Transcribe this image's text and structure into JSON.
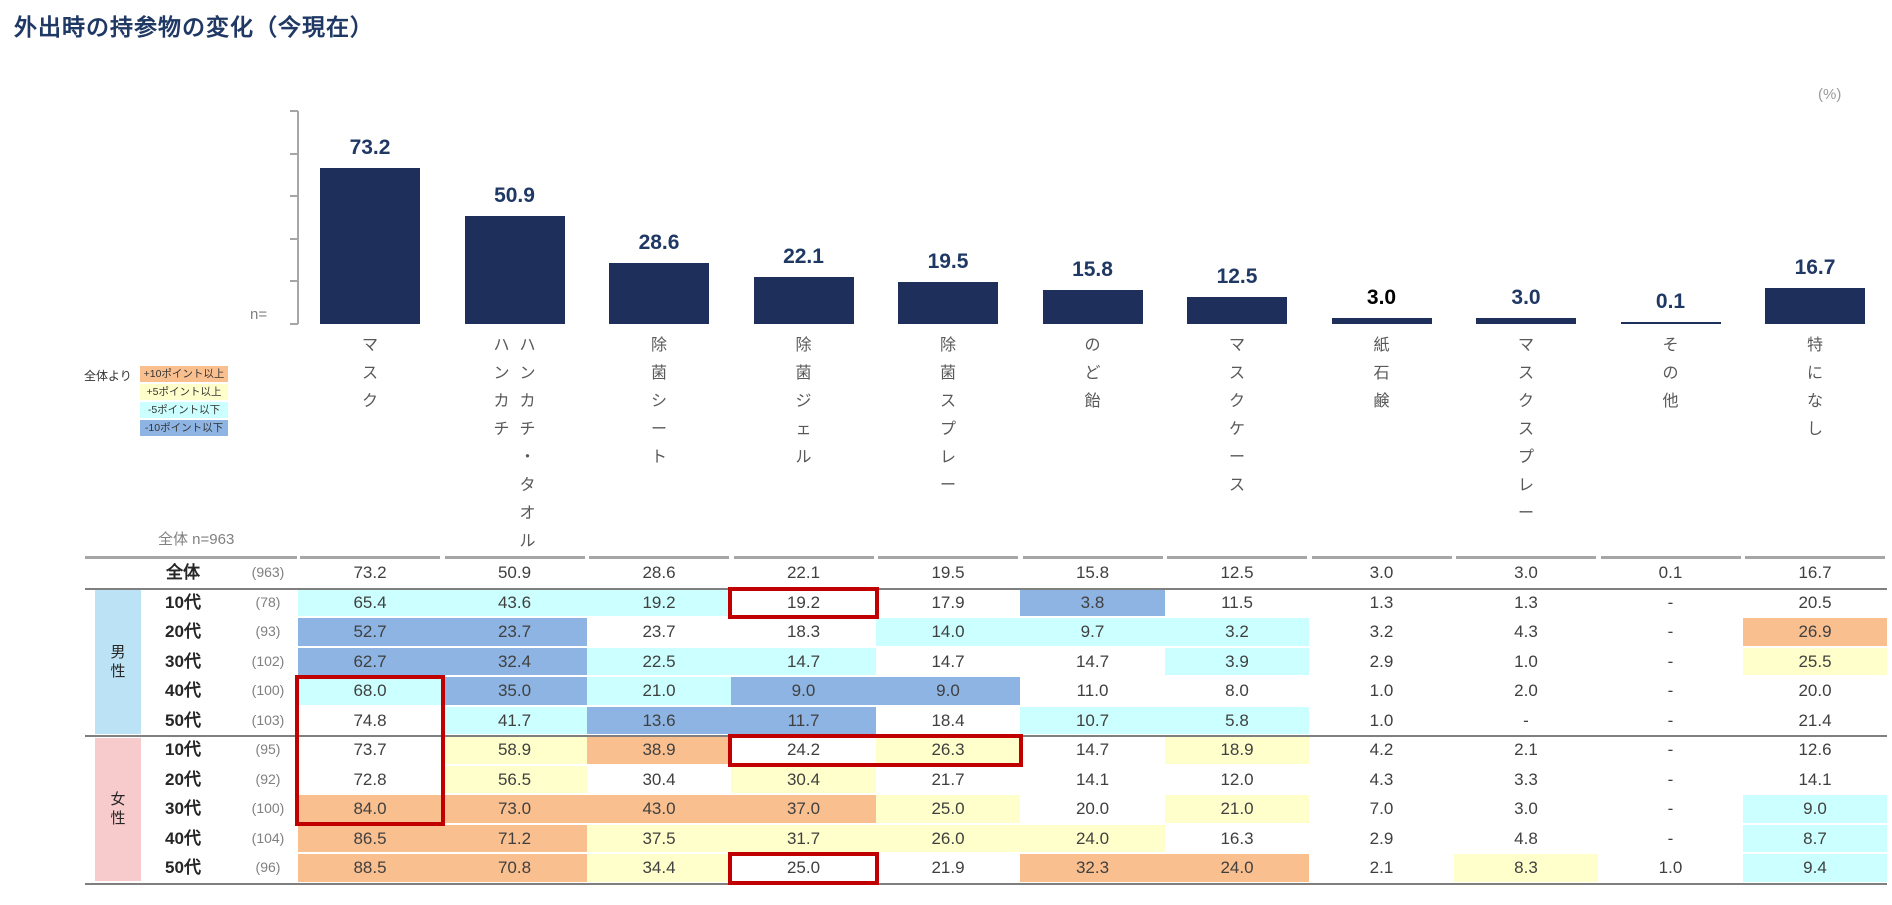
{
  "title": "外出時の持参物の変化（今現在）",
  "unit_label": "(%)",
  "n_axis_label": "n=",
  "overall_n_label": "全体 n=963",
  "legend": {
    "prefix": "全体より",
    "items": [
      {
        "label": "+10ポイント以上",
        "color": "#FABF8F"
      },
      {
        "label": "+5ポイント以上",
        "color": "#FFFFCC"
      },
      {
        "label": "-5ポイント以下",
        "color": "#CCFFFF"
      },
      {
        "label": "-10ポイント以下",
        "color": "#8DB4E2"
      }
    ]
  },
  "chart_data": {
    "type": "bar",
    "title": "外出時の持参物の変化（今現在）",
    "unit": "%",
    "categories": [
      "マスク",
      "ハンカチ・ハンカチタオル",
      "除菌シート",
      "除菌ジェル",
      "除菌スプレー",
      "のど飴",
      "マスクケース",
      "紙石鹸",
      "マスクスプレー",
      "その他",
      "特になし"
    ],
    "category_columns": [
      [
        "マスク"
      ],
      [
        "ハンカチ",
        "ハンカチ・タオル"
      ],
      [
        "除菌シート"
      ],
      [
        "除菌ジェル"
      ],
      [
        "除菌スプレー"
      ],
      [
        "のど飴"
      ],
      [
        "マスクケース"
      ],
      [
        "紙石鹸"
      ],
      [
        "マスクスプレー"
      ],
      [
        "その他"
      ],
      [
        "特になし"
      ]
    ],
    "values": [
      73.2,
      50.9,
      28.6,
      22.1,
      19.5,
      15.8,
      12.5,
      3.0,
      3.0,
      0.1,
      16.7
    ],
    "bar_color": "#1E2F5C",
    "value_label_colors": [
      "#1F3864",
      "#1F3864",
      "#1F3864",
      "#1F3864",
      "#1F3864",
      "#1F3864",
      "#1F3864",
      "#000000",
      "#1F3864",
      "#1F3864",
      "#1F3864"
    ],
    "xlabel": "",
    "ylabel": "",
    "ylim": [
      0,
      100
    ],
    "grid": false,
    "legend_position": "left-middle"
  },
  "table": {
    "cell_colors": {
      "W": "",
      "O": "#FABF8F",
      "Y": "#FFFFCC",
      "C": "#CCFFFF",
      "B": "#8DB4E2"
    },
    "groups": [
      {
        "label": "男性",
        "row_start": 1,
        "rows": 5,
        "color": "#BCE2F5"
      },
      {
        "label": "女性",
        "row_start": 6,
        "rows": 5,
        "color": "#F7CBCB"
      }
    ],
    "rows": [
      {
        "label": "全体",
        "n": "(963)",
        "values": [
          "73.2",
          "50.9",
          "28.6",
          "22.1",
          "19.5",
          "15.8",
          "12.5",
          "3.0",
          "3.0",
          "0.1",
          "16.7"
        ],
        "colors": "WWWWWWWWWWW"
      },
      {
        "label": "10代",
        "n": "(78)",
        "values": [
          "65.4",
          "43.6",
          "19.2",
          "19.2",
          "17.9",
          "3.8",
          "11.5",
          "1.3",
          "1.3",
          "-",
          "20.5"
        ],
        "colors": "CCCWWBWWWWW"
      },
      {
        "label": "20代",
        "n": "(93)",
        "values": [
          "52.7",
          "23.7",
          "23.7",
          "18.3",
          "14.0",
          "9.7",
          "3.2",
          "3.2",
          "4.3",
          "-",
          "26.9"
        ],
        "colors": "BBWWCCCWWWO"
      },
      {
        "label": "30代",
        "n": "(102)",
        "values": [
          "62.7",
          "32.4",
          "22.5",
          "14.7",
          "14.7",
          "14.7",
          "3.9",
          "2.9",
          "1.0",
          "-",
          "25.5"
        ],
        "colors": "BBCCWWCWWWY"
      },
      {
        "label": "40代",
        "n": "(100)",
        "values": [
          "68.0",
          "35.0",
          "21.0",
          "9.0",
          "9.0",
          "11.0",
          "8.0",
          "1.0",
          "2.0",
          "-",
          "20.0"
        ],
        "colors": "CBCBBWWWWWW"
      },
      {
        "label": "50代",
        "n": "(103)",
        "values": [
          "74.8",
          "41.7",
          "13.6",
          "11.7",
          "18.4",
          "10.7",
          "5.8",
          "1.0",
          "-",
          "-",
          "21.4"
        ],
        "colors": "WCBBWCCWWWW"
      },
      {
        "label": "10代",
        "n": "(95)",
        "values": [
          "73.7",
          "58.9",
          "38.9",
          "24.2",
          "26.3",
          "14.7",
          "18.9",
          "4.2",
          "2.1",
          "-",
          "12.6"
        ],
        "colors": "WYOWYWYWWWW"
      },
      {
        "label": "20代",
        "n": "(92)",
        "values": [
          "72.8",
          "56.5",
          "30.4",
          "30.4",
          "21.7",
          "14.1",
          "12.0",
          "4.3",
          "3.3",
          "-",
          "14.1"
        ],
        "colors": "WYWYWWWWWWW"
      },
      {
        "label": "30代",
        "n": "(100)",
        "values": [
          "84.0",
          "73.0",
          "43.0",
          "37.0",
          "25.0",
          "20.0",
          "21.0",
          "7.0",
          "3.0",
          "-",
          "9.0"
        ],
        "colors": "OOOOYWYWWWC"
      },
      {
        "label": "40代",
        "n": "(104)",
        "values": [
          "86.5",
          "71.2",
          "37.5",
          "31.7",
          "26.0",
          "24.0",
          "16.3",
          "2.9",
          "4.8",
          "-",
          "8.7"
        ],
        "colors": "OOYYYYWWWWC"
      },
      {
        "label": "50代",
        "n": "(96)",
        "values": [
          "88.5",
          "70.8",
          "34.4",
          "25.0",
          "21.9",
          "32.3",
          "24.0",
          "2.1",
          "8.3",
          "1.0",
          "9.4"
        ],
        "colors": "OOYWWOOWYWC"
      }
    ],
    "highlight_boxes": [
      {
        "row_start": 1,
        "row_end": 1,
        "col_start": 3,
        "col_end": 3
      },
      {
        "row_start": 4,
        "row_end": 8,
        "col_start": 0,
        "col_end": 0
      },
      {
        "row_start": 6,
        "row_end": 6,
        "col_start": 3,
        "col_end": 4
      },
      {
        "row_start": 10,
        "row_end": 10,
        "col_start": 3,
        "col_end": 3
      }
    ],
    "highlight_color": "#C00000"
  }
}
